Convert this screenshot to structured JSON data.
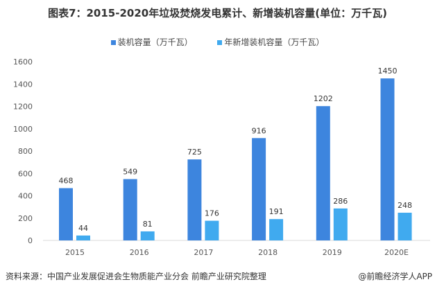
{
  "title": "图表7：2015-2020年垃圾焚烧发电累计、新增装机容量(单位：万千瓦)",
  "source": "资料来源：中国产业发展促进会生物质能产业分会 前瞻产业研究院整理",
  "credit": "@前瞻经济学人APP",
  "chart_data": {
    "type": "bar",
    "title": "图表7：2015-2020年垃圾焚烧发电累计、新增装机容量(单位：万千瓦)",
    "categories": [
      "2015",
      "2016",
      "2017",
      "2018",
      "2019",
      "2020E"
    ],
    "series": [
      {
        "name": "装机容量（万千瓦）",
        "values": [
          468,
          549,
          725,
          916,
          1202,
          1450
        ],
        "color": "#3d85de"
      },
      {
        "name": "年新增装机容量（万千瓦）",
        "values": [
          44,
          81,
          176,
          191,
          286,
          248
        ],
        "color": "#40aaef"
      }
    ],
    "yticks": [
      0,
      200,
      400,
      600,
      800,
      1000,
      1200,
      1400,
      1600
    ],
    "ylim": [
      0,
      1600
    ],
    "grid": false,
    "legend": "top-center"
  }
}
